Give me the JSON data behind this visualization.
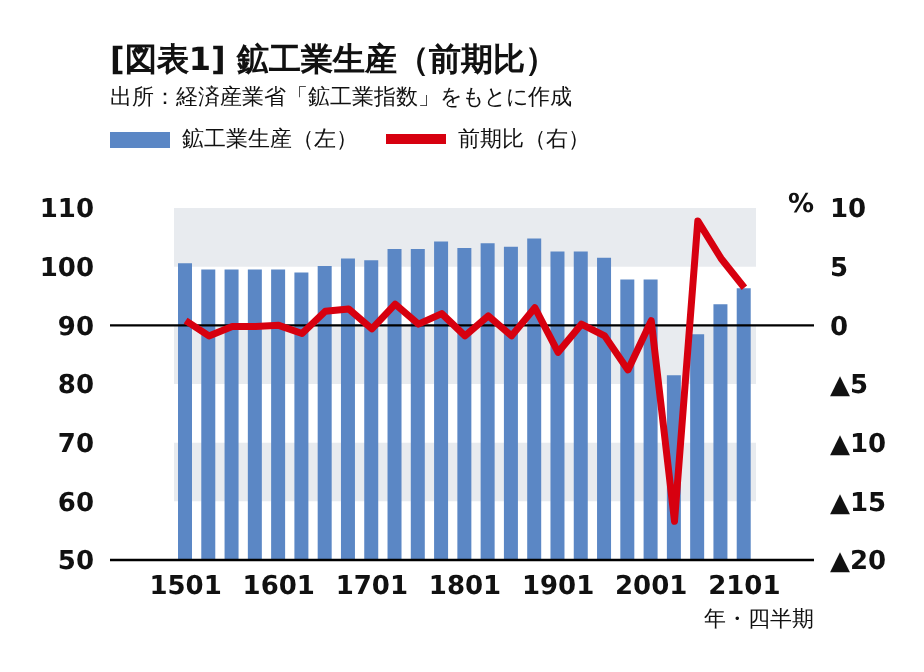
{
  "chart_data": {
    "type": "bar",
    "title": "[図表1] 鉱工業生産（前期比）",
    "subtitle": "出所：経済産業省「鉱工業指数」をもとに作成",
    "xlabel": "年・四半期",
    "y2label": "%",
    "categories": [
      "1501",
      null,
      null,
      null,
      "1601",
      null,
      null,
      null,
      "1701",
      null,
      null,
      null,
      "1801",
      null,
      null,
      null,
      "1901",
      null,
      null,
      null,
      "2001",
      null,
      null,
      null,
      "2101"
    ],
    "series": [
      {
        "name": "鉱工業生産（左）",
        "color": "#5b87c5",
        "values": [
          100.6,
          99.5,
          99.5,
          99.5,
          99.5,
          99.0,
          100.1,
          101.4,
          101.1,
          103.0,
          103.0,
          104.3,
          103.2,
          104.0,
          103.4,
          104.8,
          102.6,
          102.6,
          101.5,
          97.8,
          97.8,
          81.5,
          88.5,
          93.6,
          96.3
        ]
      },
      {
        "name": "前期比（右）",
        "type": "line",
        "axis": "y2",
        "color": "#d7000f",
        "values": [
          0.4,
          -0.9,
          -0.1,
          -0.1,
          0,
          -0.7,
          1.2,
          1.4,
          -0.3,
          1.8,
          0.1,
          1.0,
          -0.9,
          0.8,
          -0.9,
          1.5,
          -2.3,
          0.1,
          -0.9,
          -3.8,
          0.4,
          -16.7,
          8.9,
          5.7,
          3.2
        ]
      }
    ],
    "ylim": [
      50,
      110
    ],
    "yticks": [
      50,
      60,
      70,
      80,
      90,
      100,
      110
    ],
    "y2lim": [
      -20,
      10
    ],
    "y2ticks": [
      {
        "value": -20,
        "label": "▲20"
      },
      {
        "value": -15,
        "label": "▲15"
      },
      {
        "value": -10,
        "label": "▲10"
      },
      {
        "value": -5,
        "label": "▲5"
      },
      0,
      5,
      10
    ],
    "ref_lines": [
      {
        "axis": "y",
        "value": 90,
        "color": "#000000"
      }
    ],
    "bands": [
      {
        "axis": "y",
        "from": 100,
        "to": 110,
        "color": "#e8ebef"
      },
      {
        "axis": "y",
        "from": 80,
        "to": 90,
        "color": "#e8ebef"
      },
      {
        "axis": "y",
        "from": 60,
        "to": 70,
        "color": "#e8ebef"
      }
    ],
    "legend": "top left",
    "marker": "none"
  }
}
